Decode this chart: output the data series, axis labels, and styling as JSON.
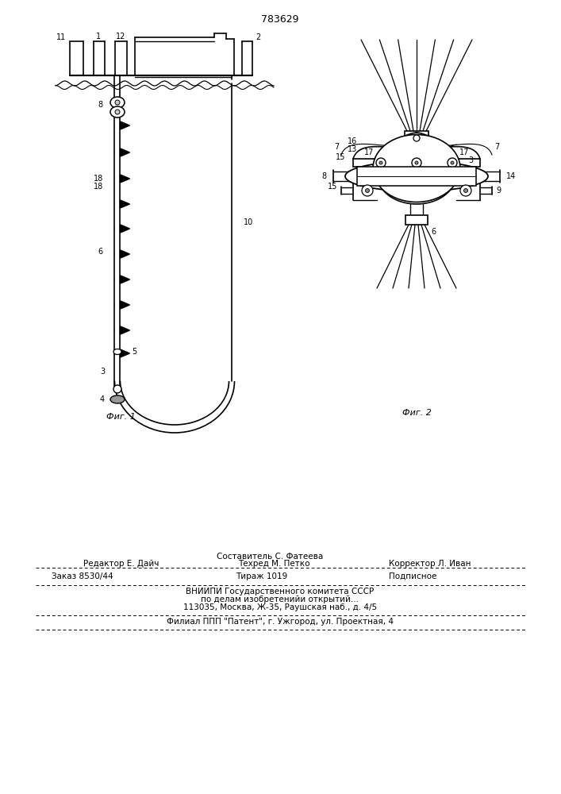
{
  "title_number": "783629",
  "fig1_caption": "Фиг. 1",
  "fig2_caption": "Фиг. 2",
  "footer_line1_left": "Редактор Е. Дайч",
  "footer_line1_center_top": "Составитель С. Фатеева",
  "footer_line1_center_bot": "Техред М. Петко",
  "footer_line1_right": "Корректор Л. Иван",
  "footer_line2_left": "Заказ 8530/44",
  "footer_line2_center": "Тираж 1019",
  "footer_line2_right": "Подписное",
  "footer_line3": "ВНИИПИ Государственного комитета СССР",
  "footer_line4": "по делам изобретенийи открытий...",
  "footer_line5": "113035, Москва, Ж-35, Раушская наб., д. 4/5",
  "footer_line6": "Филиал ППП \"Патент\", г. Ужгород, ул. Проектная, 4",
  "bg_color": "#ffffff",
  "line_color": "#000000",
  "text_color": "#000000"
}
